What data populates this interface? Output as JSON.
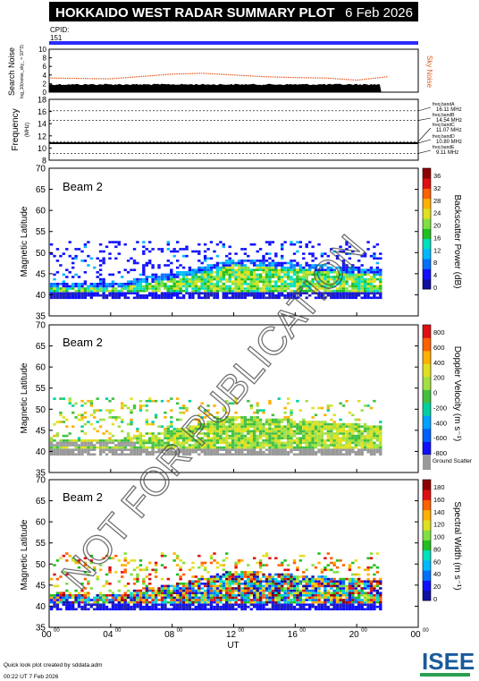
{
  "header": {
    "title": "HOKKAIDO WEST RADAR SUMMARY PLOT",
    "date": "6 Feb 2026",
    "cpid_label": "CPID:",
    "cpid_value": "151"
  },
  "footer": {
    "credit": "Quick look plot created by sddata.adm",
    "timestamp": "00:22 UT  7 Feb 2026",
    "logo_text": "ISEE"
  },
  "watermark": "NOT FOR PUBLICATION",
  "colors": {
    "cpid_bar": "#2a2aff",
    "noise": "#e05a20",
    "search_noise": "#000000"
  },
  "chart_data": [
    {
      "id": "noise",
      "type": "area",
      "ylabel": "Search Noise",
      "ysublabel": "log_10(noise_sky_ = 10^3)",
      "right_label": "Sky Noise",
      "yticks": [
        "10",
        "8",
        "6",
        "4",
        "2",
        "0"
      ],
      "ylim": [
        0,
        10
      ],
      "search_noise_level": 1.8,
      "sky_noise_curve": {
        "x": [
          0,
          4,
          8,
          10,
          12,
          14,
          16,
          18,
          20,
          22
        ],
        "y": [
          3.3,
          3.1,
          4.2,
          4.4,
          4.0,
          3.6,
          3.4,
          3.3,
          2.8,
          3.6
        ]
      }
    },
    {
      "id": "frequency",
      "type": "line",
      "ylabel": "Frequency",
      "yunit": "(MHz)",
      "yticks": [
        "18",
        "16",
        "14",
        "12",
        "10",
        "8"
      ],
      "ylim": [
        8,
        18
      ],
      "bands": [
        {
          "label": "freq bandA",
          "value": "16.11 MHz",
          "mhz": 16.11
        },
        {
          "label": "freq bandB",
          "value": "14.54 MHz",
          "mhz": 14.54
        },
        {
          "label": "freq bandC",
          "value": "11.07 MHz",
          "mhz": 11.07
        },
        {
          "label": "freq bandD",
          "value": "10.80 MHz",
          "mhz": 10.8
        },
        {
          "label": "freq bandE",
          "value": "9.11 MHz",
          "mhz": 9.11
        }
      ],
      "operating_mhz": 10.8
    },
    {
      "id": "power",
      "type": "heatmap",
      "beam": "Beam  2",
      "ylabel": "Magnetic Latitude",
      "yticks": [
        "70",
        "65",
        "60",
        "55",
        "50",
        "45",
        "40",
        "35"
      ],
      "ylim": [
        35,
        70
      ],
      "colorbar_label": "Backscatter Power (dB)",
      "colorbar_ticks": [
        "36",
        "32",
        "28",
        "24",
        "20",
        "16",
        "12",
        "8",
        "4",
        "0"
      ]
    },
    {
      "id": "velocity",
      "type": "heatmap",
      "beam": "Beam  2",
      "ylabel": "Magnetic Latitude",
      "yticks": [
        "70",
        "65",
        "60",
        "55",
        "50",
        "45",
        "40",
        "35"
      ],
      "ylim": [
        35,
        70
      ],
      "colorbar_label": "Doppler Velocity (m s⁻¹)",
      "colorbar_ticks": [
        "800",
        "600",
        "400",
        "200",
        "0",
        "-200",
        "-400",
        "-600",
        "-800"
      ],
      "ground_scatter_label": "Ground Scatter"
    },
    {
      "id": "width",
      "type": "heatmap",
      "beam": "Beam  2",
      "ylabel": "Magnetic Latitude",
      "yticks": [
        "70",
        "65",
        "60",
        "55",
        "50",
        "45",
        "40",
        "35"
      ],
      "ylim": [
        35,
        70
      ],
      "colorbar_label": "Spectral Width (m s⁻¹)",
      "colorbar_ticks": [
        "180",
        "160",
        "140",
        "120",
        "100",
        "80",
        "60",
        "40",
        "20",
        "0"
      ]
    }
  ],
  "xaxis": {
    "label": "UT",
    "ticks": [
      "00",
      "04",
      "08",
      "12",
      "16",
      "20",
      "00"
    ],
    "tick_sup": "00"
  }
}
